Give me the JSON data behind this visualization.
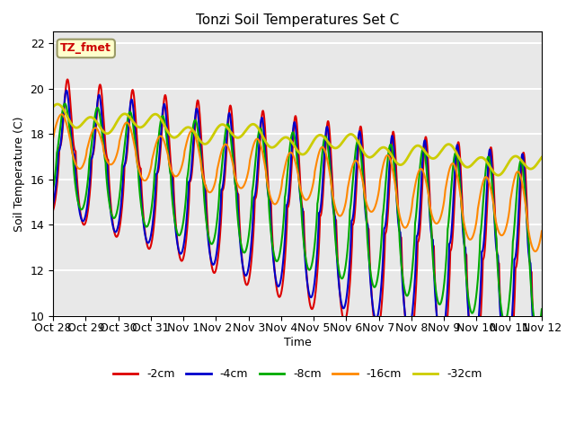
{
  "title": "Tonzi Soil Temperatures Set C",
  "xlabel": "Time",
  "ylabel": "Soil Temperature (C)",
  "ylim": [
    10,
    22.5
  ],
  "xlim": [
    0,
    15
  ],
  "annotation_text": "TZ_fmet",
  "annotation_color": "#cc0000",
  "annotation_bg": "#ffffcc",
  "annotation_border": "#999966",
  "bg_color": "#e8e8e8",
  "grid_color": "white",
  "xtick_labels": [
    "Oct 28",
    "Oct 29",
    "Oct 30",
    "Oct 31",
    "Nov 1",
    "Nov 2",
    "Nov 3",
    "Nov 4",
    "Nov 5",
    "Nov 6",
    "Nov 7",
    "Nov 8",
    "Nov 9",
    "Nov 10",
    "Nov 11",
    "Nov 12"
  ],
  "xtick_positions": [
    0,
    1,
    2,
    3,
    4,
    5,
    6,
    7,
    8,
    9,
    10,
    11,
    12,
    13,
    14,
    15
  ],
  "series_labels": [
    "-2cm",
    "-4cm",
    "-8cm",
    "-16cm",
    "-32cm"
  ],
  "series_colors": [
    "#dd0000",
    "#0000cc",
    "#00aa00",
    "#ff8800",
    "#cccc00"
  ],
  "series_linewidths": [
    1.5,
    1.5,
    1.5,
    1.5,
    2.0
  ]
}
